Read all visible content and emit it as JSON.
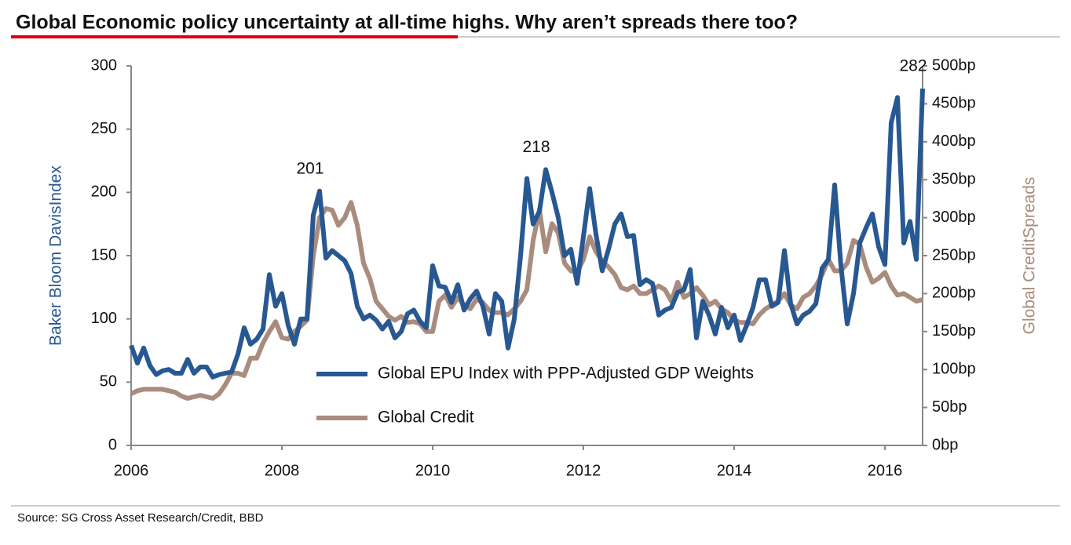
{
  "chart_data": {
    "type": "line",
    "title": "Global Economic policy uncertainty at all-time highs. Why aren’t spreads there too?",
    "source": "Source: SG Cross Asset Research/Credit, BBD",
    "y_label": "Baker Bloom DavisIndex",
    "y2_label": "Global CreditSpreads",
    "x": [
      2006,
      2006.083,
      2006.167,
      2006.25,
      2006.333,
      2006.417,
      2006.5,
      2006.583,
      2006.667,
      2006.75,
      2006.833,
      2006.917,
      2007,
      2007.083,
      2007.167,
      2007.25,
      2007.333,
      2007.417,
      2007.5,
      2007.583,
      2007.667,
      2007.75,
      2007.833,
      2007.917,
      2008,
      2008.083,
      2008.167,
      2008.25,
      2008.333,
      2008.417,
      2008.5,
      2008.583,
      2008.667,
      2008.75,
      2008.833,
      2008.917,
      2009,
      2009.083,
      2009.167,
      2009.25,
      2009.333,
      2009.417,
      2009.5,
      2009.583,
      2009.667,
      2009.75,
      2009.833,
      2009.917,
      2010,
      2010.083,
      2010.167,
      2010.25,
      2010.333,
      2010.417,
      2010.5,
      2010.583,
      2010.667,
      2010.75,
      2010.833,
      2010.917,
      2011,
      2011.083,
      2011.167,
      2011.25,
      2011.333,
      2011.417,
      2011.5,
      2011.583,
      2011.667,
      2011.75,
      2011.833,
      2011.917,
      2012,
      2012.083,
      2012.167,
      2012.25,
      2012.333,
      2012.417,
      2012.5,
      2012.583,
      2012.667,
      2012.75,
      2012.833,
      2012.917,
      2013,
      2013.083,
      2013.167,
      2013.25,
      2013.333,
      2013.417,
      2013.5,
      2013.583,
      2013.667,
      2013.75,
      2013.833,
      2013.917,
      2014,
      2014.083,
      2014.167,
      2014.25,
      2014.333,
      2014.417,
      2014.5,
      2014.583,
      2014.667,
      2014.75,
      2014.833,
      2014.917,
      2015,
      2015.083,
      2015.167,
      2015.25,
      2015.333,
      2015.417,
      2015.5,
      2015.583,
      2015.667,
      2015.75,
      2015.833,
      2015.917,
      2016,
      2016.083,
      2016.167,
      2016.25,
      2016.333,
      2016.417,
      2016.5
    ],
    "xlim": [
      2006,
      2016.5
    ],
    "xticks": [
      2006,
      2008,
      2010,
      2012,
      2014,
      2016
    ],
    "ylim": [
      0,
      300
    ],
    "yticks": [
      0,
      50,
      100,
      150,
      200,
      250,
      300
    ],
    "y2lim": [
      0,
      500
    ],
    "y2ticks": [
      {
        "value": 0,
        "label": "0bp"
      },
      {
        "value": 50,
        "label": "50bp"
      },
      {
        "value": 100,
        "label": "100bp"
      },
      {
        "value": 150,
        "label": "150bp"
      },
      {
        "value": 200,
        "label": "200bp"
      },
      {
        "value": 250,
        "label": "250bp"
      },
      {
        "value": 300,
        "label": "300bp"
      },
      {
        "value": 350,
        "label": "350bp"
      },
      {
        "value": 400,
        "label": "400bp"
      },
      {
        "value": 450,
        "label": "450bp"
      },
      {
        "value": 500,
        "label": "500bp"
      }
    ],
    "grid": false,
    "annotations": [
      201,
      218,
      282
    ],
    "series": [
      {
        "name": "Global EPU Index with PPP-Adjusted GDP Weights",
        "color": "#285892",
        "values": [
          79,
          65,
          77,
          63,
          56,
          59,
          60,
          57,
          57,
          68,
          57,
          62,
          62,
          54,
          56,
          57,
          58,
          72,
          93,
          80,
          84,
          92,
          135,
          110,
          120,
          95,
          80,
          100,
          100,
          182,
          201,
          148,
          154,
          150,
          146,
          136,
          110,
          100,
          103,
          99,
          92,
          98,
          85,
          90,
          104,
          107,
          98,
          93,
          142,
          126,
          125,
          113,
          127,
          107,
          116,
          122,
          110,
          88,
          120,
          114,
          77,
          100,
          150,
          211,
          175,
          185,
          218,
          200,
          180,
          150,
          155,
          128,
          165,
          203,
          167,
          138,
          155,
          175,
          183,
          165,
          166,
          127,
          131,
          128,
          103,
          107,
          109,
          121,
          123,
          139,
          85,
          114,
          103,
          88,
          109,
          93,
          103,
          83,
          95,
          109,
          131,
          131,
          110,
          113,
          154,
          112,
          96,
          103,
          106,
          112,
          140,
          147,
          206,
          142,
          96,
          120,
          160,
          172,
          183,
          157,
          143,
          255,
          275,
          160,
          177,
          147,
          282
        ]
      },
      {
        "name": "Global Credit",
        "color": "#a98c7e",
        "axis": "y2",
        "values": [
          68,
          72,
          74,
          74,
          74,
          74,
          72,
          70,
          65,
          62,
          64,
          66,
          64,
          62,
          68,
          80,
          95,
          95,
          92,
          115,
          115,
          135,
          150,
          163,
          142,
          140,
          150,
          157,
          165,
          250,
          300,
          312,
          310,
          290,
          300,
          320,
          290,
          240,
          220,
          190,
          180,
          170,
          165,
          170,
          162,
          163,
          160,
          150,
          150,
          190,
          198,
          182,
          195,
          185,
          180,
          193,
          188,
          178,
          175,
          175,
          172,
          180,
          190,
          205,
          270,
          310,
          255,
          292,
          280,
          240,
          230,
          228,
          245,
          275,
          255,
          243,
          235,
          225,
          208,
          205,
          210,
          200,
          200,
          205,
          210,
          205,
          190,
          215,
          195,
          200,
          208,
          198,
          185,
          190,
          180,
          175,
          165,
          162,
          162,
          160,
          172,
          180,
          185,
          190,
          200,
          185,
          180,
          195,
          200,
          210,
          225,
          245,
          230,
          230,
          240,
          270,
          265,
          235,
          215,
          220,
          228,
          210,
          198,
          200,
          195,
          190,
          192
        ]
      }
    ]
  }
}
